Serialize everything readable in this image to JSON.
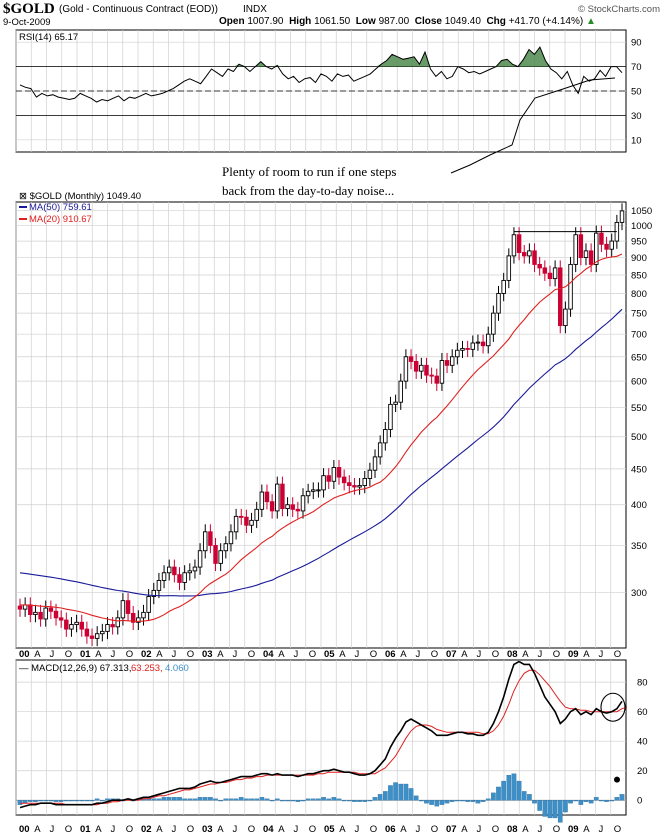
{
  "header": {
    "symbol": "$GOLD",
    "description": "(Gold - Continuous Contract (EOD))",
    "exchange": "INDX",
    "date": "9-Oct-2009",
    "brand": "© StockCharts.com",
    "open_label": "Open",
    "open": "1007.90",
    "high_label": "High",
    "high": "1061.50",
    "low_label": "Low",
    "low": "987.00",
    "close_label": "Close",
    "close": "1049.40",
    "chg_label": "Chg",
    "chg": "+41.70 (+4.14%)"
  },
  "annotation": {
    "line1": "Plenty of room to run if one steps",
    "line2": "back from the day-to-day noise..."
  },
  "colors": {
    "up": "#000000",
    "down": "#cc0033",
    "ma50": "#1a1a99",
    "ma20": "#e02020",
    "macd": "#000000",
    "signal": "#e02020",
    "hist": "#3d8fc8",
    "rsi_fill": "#4f8a4f",
    "grid": "#d0d0d0"
  },
  "chart_data": [
    {
      "panel": "rsi",
      "type": "line",
      "title": "RSI(14) 65.17",
      "ylim": [
        0,
        100
      ],
      "yticks": [
        10,
        30,
        50,
        70,
        90
      ],
      "reference_lines": [
        30,
        50,
        70
      ],
      "overbought_fill": "above 70 shaded green",
      "x": "monthly, Jan 2000 - Oct 2009",
      "values": [
        55,
        53,
        52,
        45,
        48,
        46,
        47,
        45,
        44,
        43,
        44,
        48,
        46,
        44,
        41,
        43,
        42,
        44,
        46,
        42,
        45,
        44,
        46,
        48,
        46,
        47,
        48,
        50,
        52,
        55,
        58,
        60,
        58,
        56,
        62,
        68,
        65,
        62,
        68,
        66,
        72,
        70,
        66,
        70,
        74,
        70,
        68,
        71,
        64,
        60,
        62,
        57,
        60,
        61,
        57,
        64,
        62,
        58,
        64,
        62,
        63,
        58,
        60,
        62,
        64,
        68,
        72,
        75,
        80,
        78,
        76,
        77,
        78,
        72,
        82,
        68,
        62,
        66,
        60,
        62,
        70,
        68,
        65,
        66,
        64,
        66,
        68,
        70,
        75,
        76,
        72,
        70,
        76,
        84,
        80,
        86,
        75,
        68,
        65,
        60,
        66,
        55,
        48,
        62,
        58,
        60,
        67,
        62,
        70,
        70,
        65
      ],
      "extra_line": "rising trend line at far right, 12 to 73"
    },
    {
      "panel": "price",
      "type": "candlestick",
      "title": "$GOLD (Monthly) 1049.40",
      "scale": "log",
      "ylim": [
        250,
        1080
      ],
      "yticks": [
        300,
        350,
        400,
        450,
        500,
        550,
        600,
        650,
        700,
        750,
        800,
        850,
        900,
        950,
        1000,
        1050
      ],
      "series": [
        {
          "name": "MA(50) 759.61",
          "kind": "line"
        },
        {
          "name": "MA(20) 910.67",
          "kind": "line"
        }
      ],
      "resistance_line": 980,
      "close": [
        284,
        288,
        279,
        281,
        275,
        285,
        282,
        276,
        274,
        266,
        270,
        272,
        266,
        260,
        258,
        262,
        264,
        270,
        268,
        276,
        292,
        280,
        272,
        276,
        281,
        296,
        302,
        312,
        320,
        326,
        318,
        310,
        320,
        322,
        326,
        344,
        366,
        350,
        330,
        344,
        352,
        366,
        385,
        384,
        374,
        380,
        394,
        417,
        404,
        392,
        428,
        395,
        400,
        394,
        392,
        412,
        418,
        420,
        420,
        440,
        432,
        452,
        438,
        430,
        426,
        424,
        426,
        436,
        448,
        468,
        490,
        512,
        556,
        560,
        600,
        650,
        640,
        620,
        632,
        612,
        610,
        596,
        642,
        632,
        650,
        664,
        668,
        666,
        680,
        682,
        674,
        700,
        750,
        800,
        835,
        905,
        970,
        915,
        905,
        920,
        880,
        870,
        855,
        840,
        870,
        720,
        760,
        880,
        970,
        900,
        920,
        880,
        975,
        940,
        925,
        950,
        1010,
        1049
      ],
      "ma50_start": 320,
      "ma50_end": 759.61,
      "ma20_start": 288,
      "ma20_end": 910.67
    },
    {
      "panel": "macd",
      "type": "line",
      "title": "MACD(12,26,9) 67.313, 63.253, 4.060",
      "series": [
        {
          "name": "MACD(12,26,9) 67.313",
          "kind": "line"
        },
        {
          "name": "63.253",
          "kind": "signal"
        },
        {
          "name": "4.060",
          "kind": "histogram"
        }
      ],
      "ylim": [
        -10,
        95
      ],
      "yticks": [
        0,
        20,
        40,
        60,
        80
      ],
      "macd": [
        -5,
        -4,
        -3,
        -3,
        -2,
        -2,
        -2,
        -3,
        -3,
        -3,
        -3,
        -3,
        -3,
        -3,
        -3,
        -2,
        -2,
        -1,
        0,
        0,
        0,
        1,
        0,
        1,
        2,
        2,
        3,
        4,
        5,
        6,
        7,
        8,
        8,
        8,
        9,
        11,
        12,
        13,
        12,
        12,
        13,
        14,
        15,
        16,
        16,
        16,
        17,
        18,
        18,
        17,
        18,
        17,
        17,
        17,
        16,
        17,
        18,
        18,
        19,
        20,
        20,
        21,
        20,
        19,
        19,
        18,
        17,
        17,
        18,
        20,
        24,
        28,
        36,
        42,
        47,
        53,
        55,
        53,
        51,
        49,
        47,
        44,
        44,
        44,
        45,
        46,
        46,
        45,
        45,
        44,
        44,
        46,
        52,
        60,
        70,
        82,
        92,
        94,
        92,
        92,
        86,
        78,
        70,
        65,
        60,
        52,
        55,
        60,
        62,
        58,
        60,
        58,
        62,
        60,
        59,
        60,
        62,
        67
      ],
      "signal": [
        -2,
        -2,
        -2,
        -2,
        -2,
        -2,
        -2,
        -2,
        -2,
        -3,
        -3,
        -3,
        -3,
        -3,
        -3,
        -3,
        -2,
        -2,
        -1,
        -1,
        0,
        0,
        0,
        0,
        1,
        1,
        2,
        3,
        3,
        4,
        5,
        6,
        7,
        7,
        8,
        9,
        10,
        11,
        11,
        12,
        12,
        13,
        14,
        14,
        15,
        15,
        16,
        16,
        17,
        17,
        17,
        17,
        17,
        17,
        17,
        17,
        17,
        17,
        18,
        18,
        19,
        19,
        19,
        19,
        19,
        19,
        18,
        18,
        18,
        18,
        20,
        22,
        26,
        30,
        36,
        42,
        47,
        50,
        51,
        51,
        50,
        48,
        47,
        46,
        46,
        46,
        46,
        46,
        46,
        46,
        45,
        45,
        47,
        51,
        57,
        65,
        74,
        81,
        86,
        88,
        88,
        85,
        81,
        77,
        72,
        67,
        63,
        62,
        62,
        61,
        61,
        60,
        60,
        60,
        60,
        60,
        60,
        62,
        63
      ],
      "histogram": [
        -3,
        -2,
        -1,
        -1,
        0,
        0,
        0,
        -1,
        -1,
        0,
        0,
        0,
        0,
        0,
        0,
        1,
        0,
        1,
        1,
        1,
        0,
        1,
        0,
        1,
        1,
        1,
        1,
        1,
        2,
        2,
        2,
        2,
        1,
        1,
        1,
        2,
        2,
        2,
        1,
        0,
        1,
        1,
        1,
        2,
        1,
        1,
        1,
        2,
        1,
        0,
        1,
        0,
        0,
        0,
        -1,
        0,
        1,
        1,
        1,
        2,
        1,
        2,
        1,
        0,
        0,
        -1,
        -1,
        -1,
        0,
        2,
        4,
        6,
        10,
        12,
        11,
        11,
        8,
        3,
        0,
        -2,
        -3,
        -4,
        -3,
        -2,
        -1,
        0,
        0,
        -1,
        -1,
        -2,
        -1,
        1,
        5,
        9,
        13,
        17,
        18,
        13,
        6,
        4,
        -2,
        -7,
        -11,
        -12,
        -12,
        -15,
        -8,
        -2,
        0,
        -3,
        -1,
        -2,
        2,
        0,
        -1,
        0,
        2,
        4
      ]
    }
  ],
  "x_axis": {
    "labels": [
      "00",
      "A",
      "J",
      "O",
      "01",
      "A",
      "J",
      "O",
      "02",
      "A",
      "J",
      "O",
      "03",
      "A",
      "J",
      "O",
      "04",
      "A",
      "J",
      "O",
      "05",
      "A",
      "J",
      "O",
      "06",
      "A",
      "J",
      "O",
      "07",
      "A",
      "J",
      "O",
      "08",
      "A",
      "J",
      "O",
      "09",
      "A",
      "J",
      "O"
    ],
    "bold_years": [
      "00",
      "01",
      "02",
      "03",
      "04",
      "05",
      "06",
      "07",
      "08",
      "09"
    ]
  }
}
